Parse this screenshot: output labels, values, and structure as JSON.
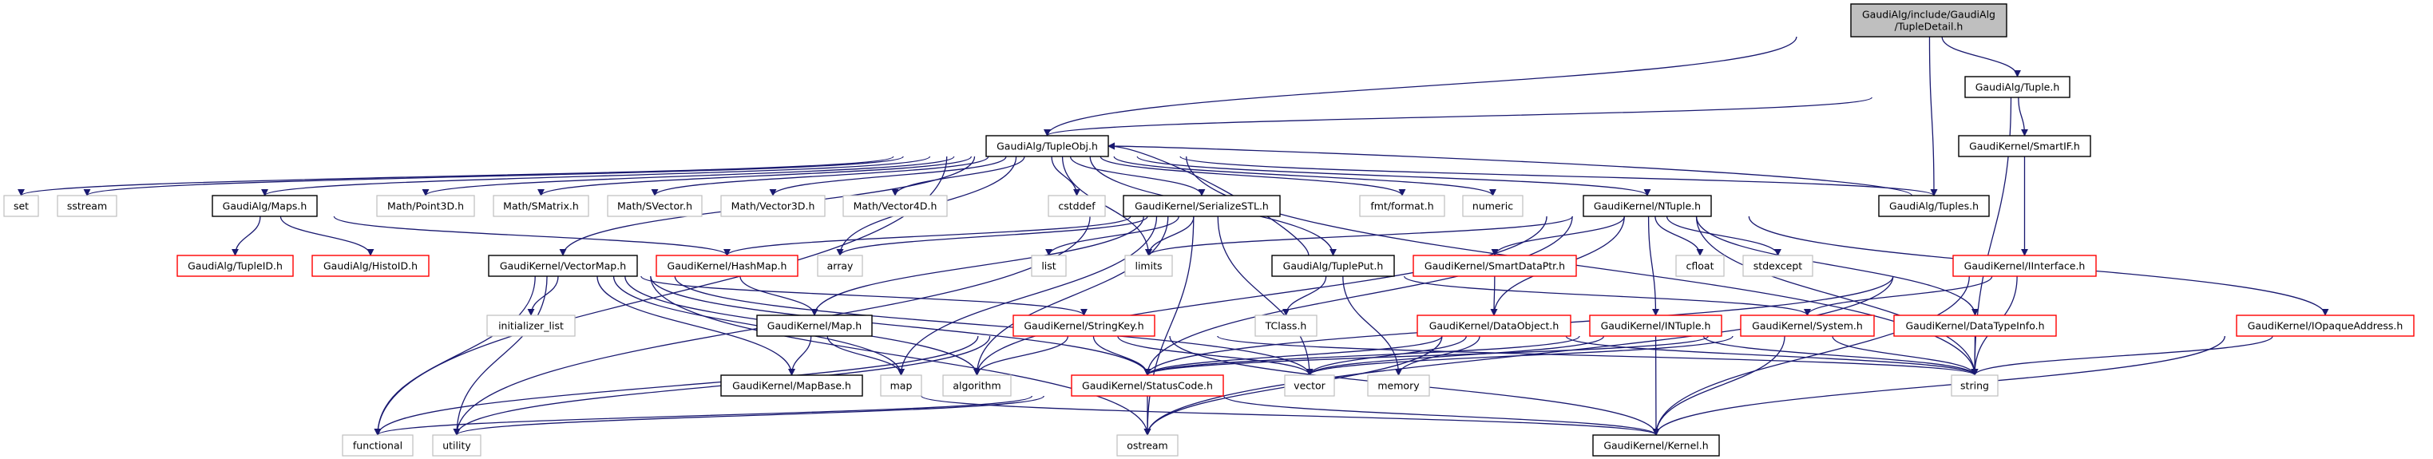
{
  "colors": {
    "edge": "#191970",
    "documented": "#000000",
    "truncated": "#ff0000",
    "external": "#bfbfbf",
    "root_fill": "#bfbfbf"
  },
  "nodes": [
    {
      "id": "detail",
      "label": "GaudiAlg/include/GaudiAlg\n/TupleDetail.h",
      "kind": "root"
    },
    {
      "id": "tuple",
      "label": "GaudiAlg/Tuple.h",
      "kind": "documented"
    },
    {
      "id": "tupleobj",
      "label": "GaudiAlg/TupleObj.h",
      "kind": "documented"
    },
    {
      "id": "smartif",
      "label": "GaudiKernel/SmartIF.h",
      "kind": "documented"
    },
    {
      "id": "set",
      "label": "set",
      "kind": "external"
    },
    {
      "id": "sstream",
      "label": "sstream",
      "kind": "external"
    },
    {
      "id": "maps",
      "label": "GaudiAlg/Maps.h",
      "kind": "documented"
    },
    {
      "id": "point3d",
      "label": "Math/Point3D.h",
      "kind": "external"
    },
    {
      "id": "smatrix",
      "label": "Math/SMatrix.h",
      "kind": "external"
    },
    {
      "id": "svector",
      "label": "Math/SVector.h",
      "kind": "external"
    },
    {
      "id": "vector3d",
      "label": "Math/Vector3D.h",
      "kind": "external"
    },
    {
      "id": "vector4d",
      "label": "Math/Vector4D.h",
      "kind": "external"
    },
    {
      "id": "cstddef",
      "label": "cstddef",
      "kind": "external"
    },
    {
      "id": "serialize",
      "label": "GaudiKernel/SerializeSTL.h",
      "kind": "documented"
    },
    {
      "id": "fmt",
      "label": "fmt/format.h",
      "kind": "external"
    },
    {
      "id": "numeric",
      "label": "numeric",
      "kind": "external"
    },
    {
      "id": "ntuple",
      "label": "GaudiKernel/NTuple.h",
      "kind": "documented"
    },
    {
      "id": "tuples",
      "label": "GaudiAlg/Tuples.h",
      "kind": "documented"
    },
    {
      "id": "tupleid",
      "label": "GaudiAlg/TupleID.h",
      "kind": "truncated"
    },
    {
      "id": "histoid",
      "label": "GaudiAlg/HistoID.h",
      "kind": "truncated"
    },
    {
      "id": "vectormap",
      "label": "GaudiKernel/VectorMap.h",
      "kind": "documented"
    },
    {
      "id": "hashmap",
      "label": "GaudiKernel/HashMap.h",
      "kind": "truncated"
    },
    {
      "id": "array",
      "label": "array",
      "kind": "external"
    },
    {
      "id": "list",
      "label": "list",
      "kind": "external"
    },
    {
      "id": "limits",
      "label": "limits",
      "kind": "external"
    },
    {
      "id": "tupleput",
      "label": "GaudiAlg/TuplePut.h",
      "kind": "documented"
    },
    {
      "id": "smartdataptr",
      "label": "GaudiKernel/SmartDataPtr.h",
      "kind": "truncated"
    },
    {
      "id": "cfloat",
      "label": "cfloat",
      "kind": "external"
    },
    {
      "id": "stdexcept",
      "label": "stdexcept",
      "kind": "external"
    },
    {
      "id": "iinterface",
      "label": "GaudiKernel/IInterface.h",
      "kind": "truncated"
    },
    {
      "id": "initlist",
      "label": "initializer_list",
      "kind": "external"
    },
    {
      "id": "map_h",
      "label": "GaudiKernel/Map.h",
      "kind": "documented"
    },
    {
      "id": "stringkey",
      "label": "GaudiKernel/StringKey.h",
      "kind": "truncated"
    },
    {
      "id": "tclass",
      "label": "TClass.h",
      "kind": "external"
    },
    {
      "id": "dataobject",
      "label": "GaudiKernel/DataObject.h",
      "kind": "truncated"
    },
    {
      "id": "intuple",
      "label": "GaudiKernel/INTuple.h",
      "kind": "truncated"
    },
    {
      "id": "system",
      "label": "GaudiKernel/System.h",
      "kind": "truncated"
    },
    {
      "id": "datatypeinfo",
      "label": "GaudiKernel/DataTypeInfo.h",
      "kind": "truncated"
    },
    {
      "id": "iopaque",
      "label": "GaudiKernel/IOpaqueAddress.h",
      "kind": "truncated"
    },
    {
      "id": "mapbase",
      "label": "GaudiKernel/MapBase.h",
      "kind": "documented"
    },
    {
      "id": "map",
      "label": "map",
      "kind": "external"
    },
    {
      "id": "algorithm",
      "label": "algorithm",
      "kind": "external"
    },
    {
      "id": "statuscode",
      "label": "GaudiKernel/StatusCode.h",
      "kind": "truncated"
    },
    {
      "id": "vector",
      "label": "vector",
      "kind": "external"
    },
    {
      "id": "memory",
      "label": "memory",
      "kind": "external"
    },
    {
      "id": "string",
      "label": "string",
      "kind": "external"
    },
    {
      "id": "functional",
      "label": "functional",
      "kind": "external"
    },
    {
      "id": "utility",
      "label": "utility",
      "kind": "external"
    },
    {
      "id": "ostream",
      "label": "ostream",
      "kind": "external"
    },
    {
      "id": "kernel",
      "label": "GaudiKernel/Kernel.h",
      "kind": "documented"
    }
  ],
  "edges": [
    [
      "detail",
      "tupleobj"
    ],
    [
      "detail",
      "tuple"
    ],
    [
      "detail",
      "tuples"
    ],
    [
      "tuple",
      "tupleobj"
    ],
    [
      "tuple",
      "smartif"
    ],
    [
      "tuple",
      "string"
    ],
    [
      "smartif",
      "iinterface"
    ],
    [
      "iinterface",
      "system"
    ],
    [
      "iinterface",
      "string"
    ],
    [
      "iinterface",
      "kernel"
    ],
    [
      "iinterface",
      "ostream"
    ],
    [
      "iinterface",
      "statuscode"
    ],
    [
      "tupleobj",
      "set"
    ],
    [
      "tupleobj",
      "sstream"
    ],
    [
      "tupleobj",
      "maps"
    ],
    [
      "tupleobj",
      "point3d"
    ],
    [
      "tupleobj",
      "smatrix"
    ],
    [
      "tupleobj",
      "svector"
    ],
    [
      "tupleobj",
      "vector3d"
    ],
    [
      "tupleobj",
      "vector4d"
    ],
    [
      "tupleobj",
      "cstddef"
    ],
    [
      "tupleobj",
      "serialize"
    ],
    [
      "tupleobj",
      "fmt"
    ],
    [
      "tupleobj",
      "numeric"
    ],
    [
      "tupleobj",
      "ntuple"
    ],
    [
      "tupleobj",
      "tuples"
    ],
    [
      "tupleobj",
      "vectormap"
    ],
    [
      "tupleobj",
      "array"
    ],
    [
      "tupleobj",
      "limits"
    ],
    [
      "tupleobj",
      "tupleput"
    ],
    [
      "tupleobj",
      "functional"
    ],
    [
      "tupleobj",
      "string"
    ],
    [
      "tuples",
      "tupleobj"
    ],
    [
      "tupleput",
      "tupleobj"
    ],
    [
      "maps",
      "tupleid"
    ],
    [
      "maps",
      "histoid"
    ],
    [
      "maps",
      "hashmap"
    ],
    [
      "vectormap",
      "initlist"
    ],
    [
      "vectormap",
      "functional"
    ],
    [
      "vectormap",
      "utility"
    ],
    [
      "vectormap",
      "algorithm"
    ],
    [
      "vectormap",
      "ostream"
    ],
    [
      "vectormap",
      "mapbase"
    ],
    [
      "vectormap",
      "statuscode"
    ],
    [
      "vectormap",
      "stringkey"
    ],
    [
      "vectormap",
      "vector"
    ],
    [
      "vectormap",
      "map"
    ],
    [
      "hashmap",
      "map_h"
    ],
    [
      "map_h",
      "mapbase"
    ],
    [
      "map_h",
      "map"
    ],
    [
      "mapbase",
      "kernel"
    ],
    [
      "serialize",
      "hashmap"
    ],
    [
      "serialize",
      "array"
    ],
    [
      "serialize",
      "list"
    ],
    [
      "serialize",
      "limits"
    ],
    [
      "serialize",
      "map_h"
    ],
    [
      "serialize",
      "map"
    ],
    [
      "serialize",
      "algorithm"
    ],
    [
      "serialize",
      "vector"
    ],
    [
      "serialize",
      "ostream"
    ],
    [
      "serialize",
      "utility"
    ],
    [
      "stringkey",
      "algorithm"
    ],
    [
      "stringkey",
      "statuscode"
    ],
    [
      "stringkey",
      "vector"
    ],
    [
      "stringkey",
      "string"
    ],
    [
      "stringkey",
      "kernel"
    ],
    [
      "stringkey",
      "functional"
    ],
    [
      "stringkey",
      "utility"
    ],
    [
      "statuscode",
      "ostream"
    ],
    [
      "statuscode",
      "kernel"
    ],
    [
      "statuscode",
      "functional"
    ],
    [
      "statuscode",
      "utility"
    ],
    [
      "tupleput",
      "tclass"
    ],
    [
      "tupleput",
      "memory"
    ],
    [
      "tupleput",
      "system"
    ],
    [
      "ntuple",
      "limits"
    ],
    [
      "ntuple",
      "algorithm"
    ],
    [
      "ntuple",
      "smartdataptr"
    ],
    [
      "ntuple",
      "dataobject"
    ],
    [
      "ntuple",
      "intuple"
    ],
    [
      "ntuple",
      "cfloat"
    ],
    [
      "ntuple",
      "stdexcept"
    ],
    [
      "ntuple",
      "datatypeinfo"
    ],
    [
      "ntuple",
      "iopaque"
    ],
    [
      "ntuple",
      "string"
    ],
    [
      "ntuple",
      "statuscode"
    ],
    [
      "smartdataptr",
      "dataobject"
    ],
    [
      "dataobject",
      "statuscode"
    ],
    [
      "dataobject",
      "memory"
    ],
    [
      "dataobject",
      "vector"
    ],
    [
      "dataobject",
      "ostream"
    ],
    [
      "dataobject",
      "string"
    ],
    [
      "intuple",
      "kernel"
    ],
    [
      "intuple",
      "string"
    ],
    [
      "intuple",
      "statuscode"
    ],
    [
      "intuple",
      "vector"
    ],
    [
      "system",
      "kernel"
    ],
    [
      "system",
      "string"
    ],
    [
      "system",
      "statuscode"
    ],
    [
      "system",
      "vector"
    ],
    [
      "datatypeinfo",
      "string"
    ],
    [
      "iopaque",
      "string"
    ],
    [
      "iopaque",
      "kernel"
    ]
  ]
}
